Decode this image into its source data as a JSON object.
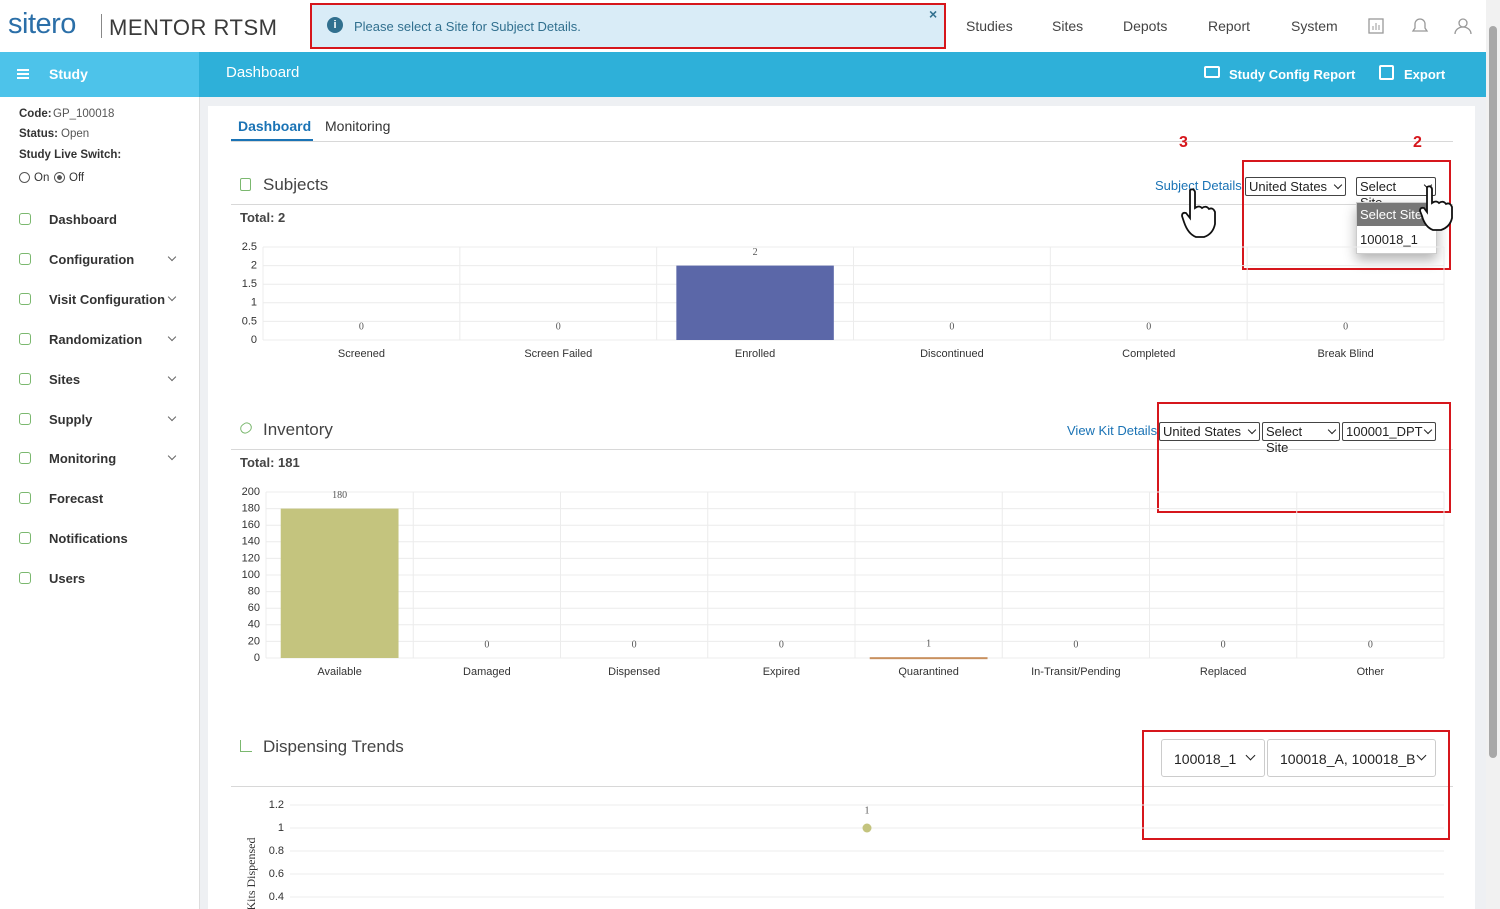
{
  "header": {
    "logo": "sitero",
    "product": "MENTOR RTSM",
    "alert": "Please select a Site for Subject Details.",
    "alert_close": "×",
    "nav": [
      "Studies",
      "Sites",
      "Depots",
      "Report",
      "System"
    ]
  },
  "toolbar": {
    "sidebar_title": "Study",
    "page_title": "Dashboard",
    "actions": [
      "Study Config Report",
      "Export"
    ]
  },
  "sidebar": {
    "info": [
      {
        "label": "Code:",
        "value": "GP_100018"
      },
      {
        "label": "Status:",
        "value": "Open"
      }
    ],
    "live_switch": {
      "label": "Study Live Switch:",
      "options": [
        "On",
        "Off"
      ],
      "selected": 1
    },
    "menu": [
      {
        "label": "Dashboard",
        "expandable": false
      },
      {
        "label": "Configuration",
        "expandable": true
      },
      {
        "label": "Visit Configuration",
        "expandable": true
      },
      {
        "label": "Randomization",
        "expandable": true
      },
      {
        "label": "Sites",
        "expandable": true
      },
      {
        "label": "Supply",
        "expandable": true
      },
      {
        "label": "Monitoring",
        "expandable": true
      },
      {
        "label": "Forecast",
        "expandable": false
      },
      {
        "label": "Notifications",
        "expandable": false
      },
      {
        "label": "Users",
        "expandable": false
      }
    ]
  },
  "tabs": {
    "items": [
      "Dashboard",
      "Monitoring"
    ],
    "active": 0
  },
  "annotations": [
    "3",
    "2"
  ],
  "subjects": {
    "title": "Subjects",
    "total": "Total: 2",
    "link": "Subject Details",
    "filters": [
      "United States",
      "Select Site"
    ],
    "dropdown_options": [
      "Select Site",
      "100018_1"
    ],
    "chart": {
      "type": "bar",
      "categories": [
        "Screened",
        "Screen Failed",
        "Enrolled",
        "Discontinued",
        "Completed",
        "Break Blind"
      ],
      "values": [
        0,
        0,
        2,
        0,
        0,
        0
      ],
      "color": "#5b67a8",
      "ylim": [
        0,
        2.5
      ],
      "yticks": [
        0,
        0.5,
        1,
        1.5,
        2,
        2.5
      ],
      "grid": true
    }
  },
  "inventory": {
    "title": "Inventory",
    "total": "Total: 181",
    "link": "View Kit Details",
    "filters": [
      "United States",
      "Select Site",
      "100001_DPT"
    ],
    "chart": {
      "type": "bar",
      "categories": [
        "Available",
        "Damaged",
        "Dispensed",
        "Expired",
        "Quarantined",
        "In-Transit/Pending",
        "Replaced",
        "Other"
      ],
      "values": [
        180,
        0,
        0,
        0,
        1,
        0,
        0,
        0
      ],
      "colors": [
        "#c4c47e",
        null,
        null,
        null,
        "#c8905e",
        null,
        null,
        null
      ],
      "ylim": [
        0,
        200
      ],
      "yticks": [
        0,
        20,
        40,
        60,
        80,
        100,
        120,
        140,
        160,
        180,
        200
      ],
      "grid": true
    }
  },
  "dispensing": {
    "title": "Dispensing Trends",
    "filters": [
      "100018_1",
      "100018_A, 100018_B"
    ],
    "chart": {
      "type": "scatter",
      "ylabel": "Kits Dispensed",
      "categories": [
        null
      ],
      "values": [
        1
      ],
      "color": "#c4c47e",
      "ylim": [
        0,
        1.2
      ],
      "yticks": [
        0.4,
        0.6,
        0.8,
        1,
        1.2
      ],
      "grid": true
    }
  }
}
